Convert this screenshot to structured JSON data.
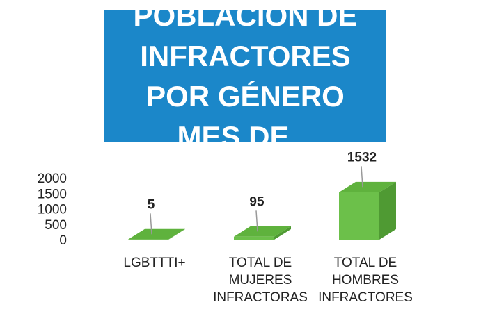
{
  "chart_data": {
    "type": "bar3d",
    "title": "POBLACIÓN DE INFRACTORES POR GÉNERO MES DE...",
    "categories": [
      "LGBTTTI+",
      "TOTAL DE MUJERES INFRACTORAS",
      "TOTAL DE HOMBRES INFRACTORES"
    ],
    "values": [
      5,
      95,
      1532
    ],
    "color": "#6cc04a",
    "ylim": [
      0,
      2000
    ],
    "yticks": [
      0,
      500,
      1000,
      1500,
      2000
    ]
  }
}
